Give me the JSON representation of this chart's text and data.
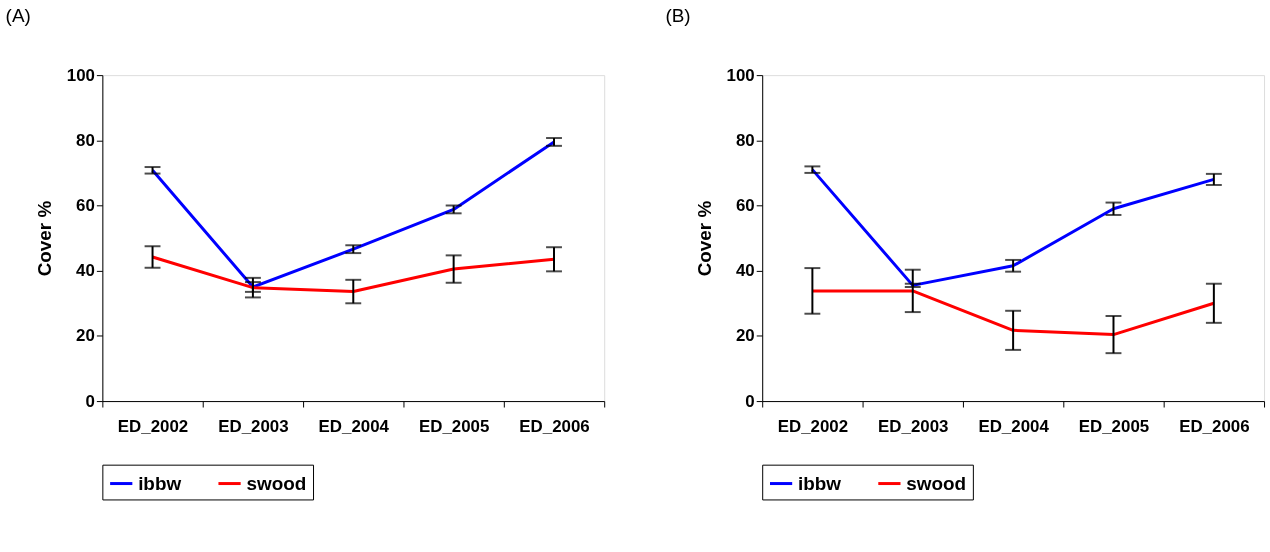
{
  "chart_data": [
    {
      "type": "line",
      "title": "(A)",
      "ylabel": "Cover %",
      "categories": [
        "ED_2002",
        "ED_2003",
        "ED_2004",
        "ED_2005",
        "ED_2006"
      ],
      "ylim": [
        0,
        100
      ],
      "yticks": [
        0,
        20,
        40,
        60,
        80,
        100
      ],
      "grid": false,
      "legend": "bottom",
      "marker": "none",
      "line_style": "solid",
      "series": [
        {
          "name": "ibbw",
          "color": "#0000ff",
          "values": [
            70.8,
            35,
            46.6,
            58.8,
            79.5
          ],
          "errors": [
            1,
            1.5,
            1.2,
            1.2,
            1.2
          ]
        },
        {
          "name": "swood",
          "color": "#ff0000",
          "values": [
            44.2,
            34.8,
            33.6,
            40.5,
            43.5
          ],
          "errors": [
            3.3,
            3,
            3.6,
            4.2,
            3.7
          ]
        }
      ]
    },
    {
      "type": "line",
      "title": "(B)",
      "ylabel": "Cover %",
      "categories": [
        "ED_2002",
        "ED_2003",
        "ED_2004",
        "ED_2005",
        "ED_2006"
      ],
      "ylim": [
        0,
        100
      ],
      "yticks": [
        0,
        20,
        40,
        60,
        80,
        100
      ],
      "grid": false,
      "legend": "bottom",
      "marker": "none",
      "line_style": "solid",
      "series": [
        {
          "name": "ibbw",
          "color": "#0000ff",
          "values": [
            71,
            35.5,
            41.5,
            59,
            68
          ],
          "errors": [
            1,
            0.5,
            1.8,
            1.9,
            1.7
          ]
        },
        {
          "name": "swood",
          "color": "#ff0000",
          "values": [
            33.8,
            33.8,
            21.7,
            20.4,
            30
          ],
          "errors": [
            7,
            6.5,
            6,
            5.7,
            6
          ]
        }
      ]
    }
  ]
}
